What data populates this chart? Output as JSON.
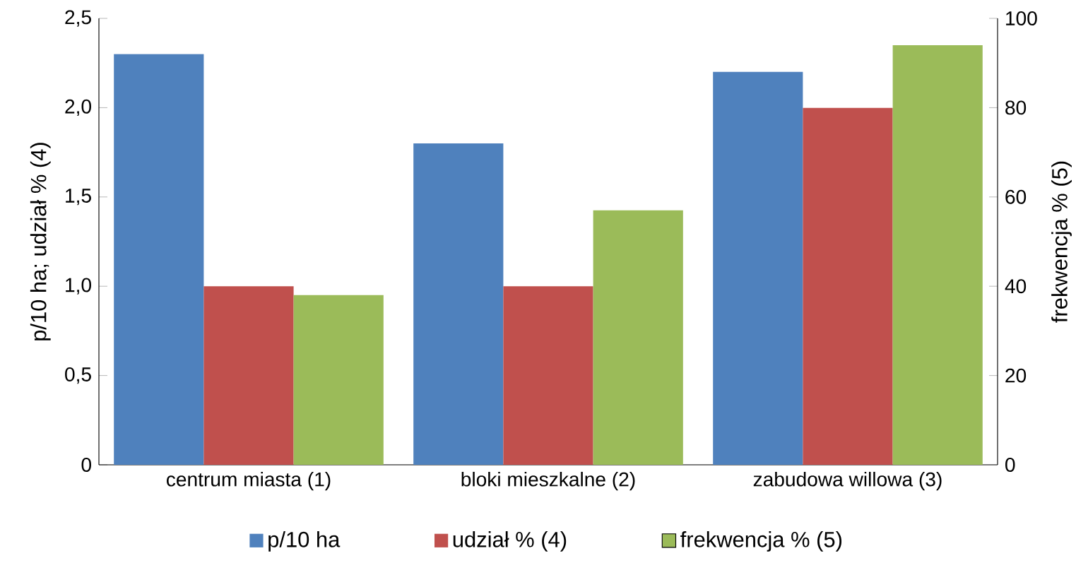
{
  "chart_data": {
    "type": "bar",
    "categories": [
      "centrum miasta (1)",
      "bloki mieszkalne (2)",
      "zabudowa willowa (3)"
    ],
    "ylabel": "p/10 ha;  udział % (4)",
    "y2label": "frekwencja % (5)",
    "ylim": [
      0,
      2.5
    ],
    "yticks": [
      0,
      {
        "value": 0.5,
        "label": "0,5"
      },
      {
        "value": 1,
        "label": "1,0"
      },
      {
        "value": 1.5,
        "label": "1,5"
      },
      {
        "value": 2,
        "label": "2,0"
      },
      {
        "value": 2.5,
        "label": "2,5"
      }
    ],
    "y2lim": [
      0,
      100
    ],
    "y2ticks": [
      0,
      20,
      40,
      60,
      80,
      100
    ],
    "series": [
      {
        "name": "p/10 ha",
        "color": "#4f81bd",
        "values": [
          2.3,
          1.8,
          2.2
        ]
      },
      {
        "name": "udział % (4)",
        "color": "#c0504d",
        "values": [
          1.0,
          1.0,
          2.0
        ]
      },
      {
        "name": "frekwencja % (5)",
        "color": "#9bbb59",
        "values": [
          38,
          57,
          94
        ],
        "axis": "y2"
      }
    ],
    "legend": "bottom",
    "grid": false
  }
}
